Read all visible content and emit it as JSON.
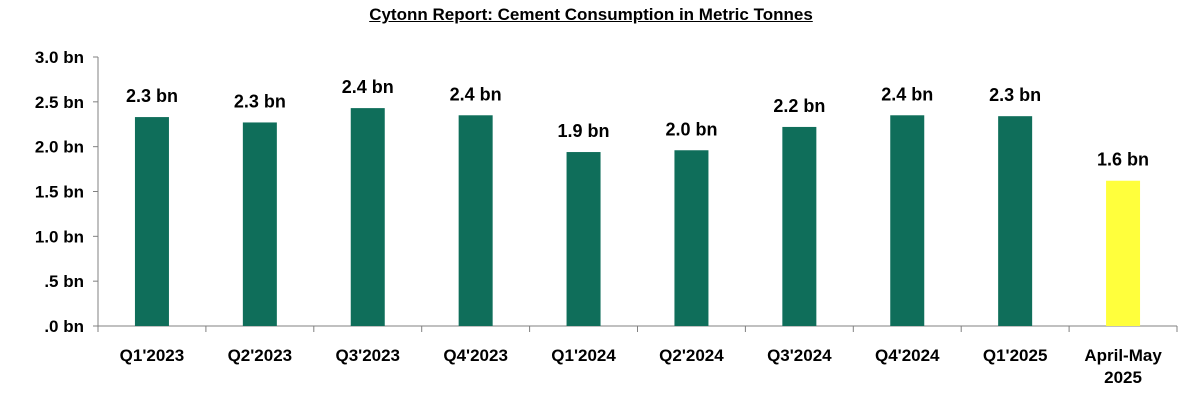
{
  "chart_data": {
    "type": "bar",
    "title": "Cytonn Report: Cement Consumption in Metric Tonnes",
    "categories": [
      "Q1'2023",
      "Q2'2023",
      "Q3'2023",
      "Q4'2023",
      "Q1'2024",
      "Q2'2024",
      "Q3'2024",
      "Q4'2024",
      "Q1'2025",
      "April-May 2025"
    ],
    "values": [
      2.33,
      2.27,
      2.43,
      2.35,
      1.94,
      1.96,
      2.22,
      2.35,
      2.34,
      1.62
    ],
    "data_labels": [
      "2.3 bn",
      "2.3 bn",
      "2.4 bn",
      "2.4 bn",
      "1.9 bn",
      "2.0 bn",
      "2.2 bn",
      "2.4 bn",
      "2.3 bn",
      "1.6 bn"
    ],
    "ylim": [
      0,
      3.0
    ],
    "yticks": [
      0,
      0.5,
      1.0,
      1.5,
      2.0,
      2.5,
      3.0
    ],
    "ytick_labels": [
      ".0 bn",
      ".5 bn",
      "1.0 bn",
      "1.5 bn",
      "2.0 bn",
      "2.5 bn",
      "3.0 bn"
    ],
    "xlabel": "",
    "ylabel": "",
    "grid": false,
    "legend": "none",
    "colors": {
      "bar": "#0f6e5a",
      "highlight_bar": "#ffff3c",
      "axis": "#808080"
    },
    "highlight_index": 9
  }
}
